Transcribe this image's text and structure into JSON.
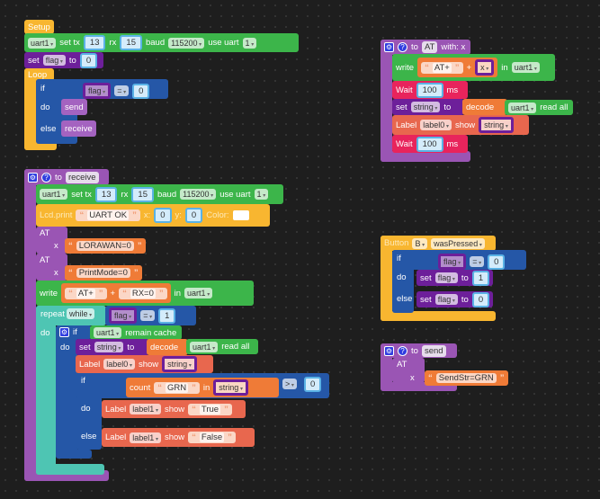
{
  "setup": {
    "hat": "Setup",
    "uart": {
      "port": "uart1",
      "set_tx": "set tx",
      "tx": "13",
      "rx_label": "rx",
      "rx": "15",
      "baud_label": "baud",
      "baud": "115200",
      "use_uart": "use uart",
      "uart_num": "1"
    },
    "set_flag": {
      "set": "set",
      "var": "flag",
      "to": "to",
      "value": "0"
    }
  },
  "loop": {
    "label": "Loop",
    "if": "if",
    "do": "do",
    "else": "else",
    "cond": {
      "var": "flag",
      "op": "=",
      "value": "0"
    },
    "do_call": "send",
    "else_call": "receive"
  },
  "receive": {
    "to": "to",
    "name": "receive",
    "uart": {
      "port": "uart1",
      "set_tx": "set tx",
      "tx": "13",
      "rx_label": "rx",
      "rx": "15",
      "baud_label": "baud",
      "baud": "115200",
      "use_uart": "use uart",
      "uart_num": "1"
    },
    "lcd": {
      "label": "Lcd.print",
      "text": "UART OK",
      "x_label": "x:",
      "x": "0",
      "y_label": "y:",
      "y": "0",
      "color_label": "Color:"
    },
    "at1": {
      "label": "AT",
      "x": "x",
      "value": "LORAWAN=0"
    },
    "at2": {
      "label": "AT",
      "x": "x",
      "value": "PrintMode=0"
    },
    "write": {
      "label": "write",
      "a": "AT+",
      "plus": "+",
      "b": "RX=0",
      "in": "in",
      "port": "uart1"
    },
    "repeat": {
      "label": "repeat",
      "mode": "while",
      "do": "do",
      "cond": {
        "var": "flag",
        "op": "=",
        "value": "1"
      }
    },
    "if_cache": {
      "if": "if",
      "do": "do",
      "port": "uart1",
      "text": "remain cache"
    },
    "set_string": {
      "set": "set",
      "var": "string",
      "to": "to",
      "decode": "decode",
      "port": "uart1",
      "read": "read all"
    },
    "label0": {
      "label": "Label",
      "name": "label0",
      "show": "show",
      "var": "string"
    },
    "if_grn": {
      "if": "if",
      "do": "do",
      "else": "else",
      "count": "count",
      "text": "GRN",
      "in": "in",
      "var": "string",
      "op": ">",
      "value": "0"
    },
    "label_true": {
      "label": "Label",
      "name": "label1",
      "show": "show",
      "text": "True"
    },
    "label_false": {
      "label": "Label",
      "name": "label1",
      "show": "show",
      "text": "False"
    }
  },
  "at_proc": {
    "to": "to",
    "name": "AT",
    "with": "with: x",
    "write": {
      "label": "write",
      "a": "AT+",
      "plus": "+",
      "var": "x",
      "in": "in",
      "port": "uart1"
    },
    "wait1": {
      "label": "Wait",
      "value": "100",
      "unit": "ms"
    },
    "set_string": {
      "set": "set",
      "var": "string",
      "to": "to",
      "decode": "decode",
      "port": "uart1",
      "read": "read all"
    },
    "label0": {
      "label": "Label",
      "name": "label0",
      "show": "show",
      "var": "string"
    },
    "wait2": {
      "label": "Wait",
      "value": "100",
      "unit": "ms"
    }
  },
  "button": {
    "label": "Button",
    "btn": "B",
    "event": "wasPressed",
    "if": "if",
    "do": "do",
    "else": "else",
    "cond": {
      "var": "flag",
      "op": "=",
      "value": "0"
    },
    "set1": {
      "set": "set",
      "var": "flag",
      "to": "to",
      "value": "1"
    },
    "set0": {
      "set": "set",
      "var": "flag",
      "to": "to",
      "value": "0"
    }
  },
  "send_proc": {
    "to": "to",
    "name": "send",
    "at": "AT",
    "x": "x",
    "value": "SendStr=GRN"
  }
}
